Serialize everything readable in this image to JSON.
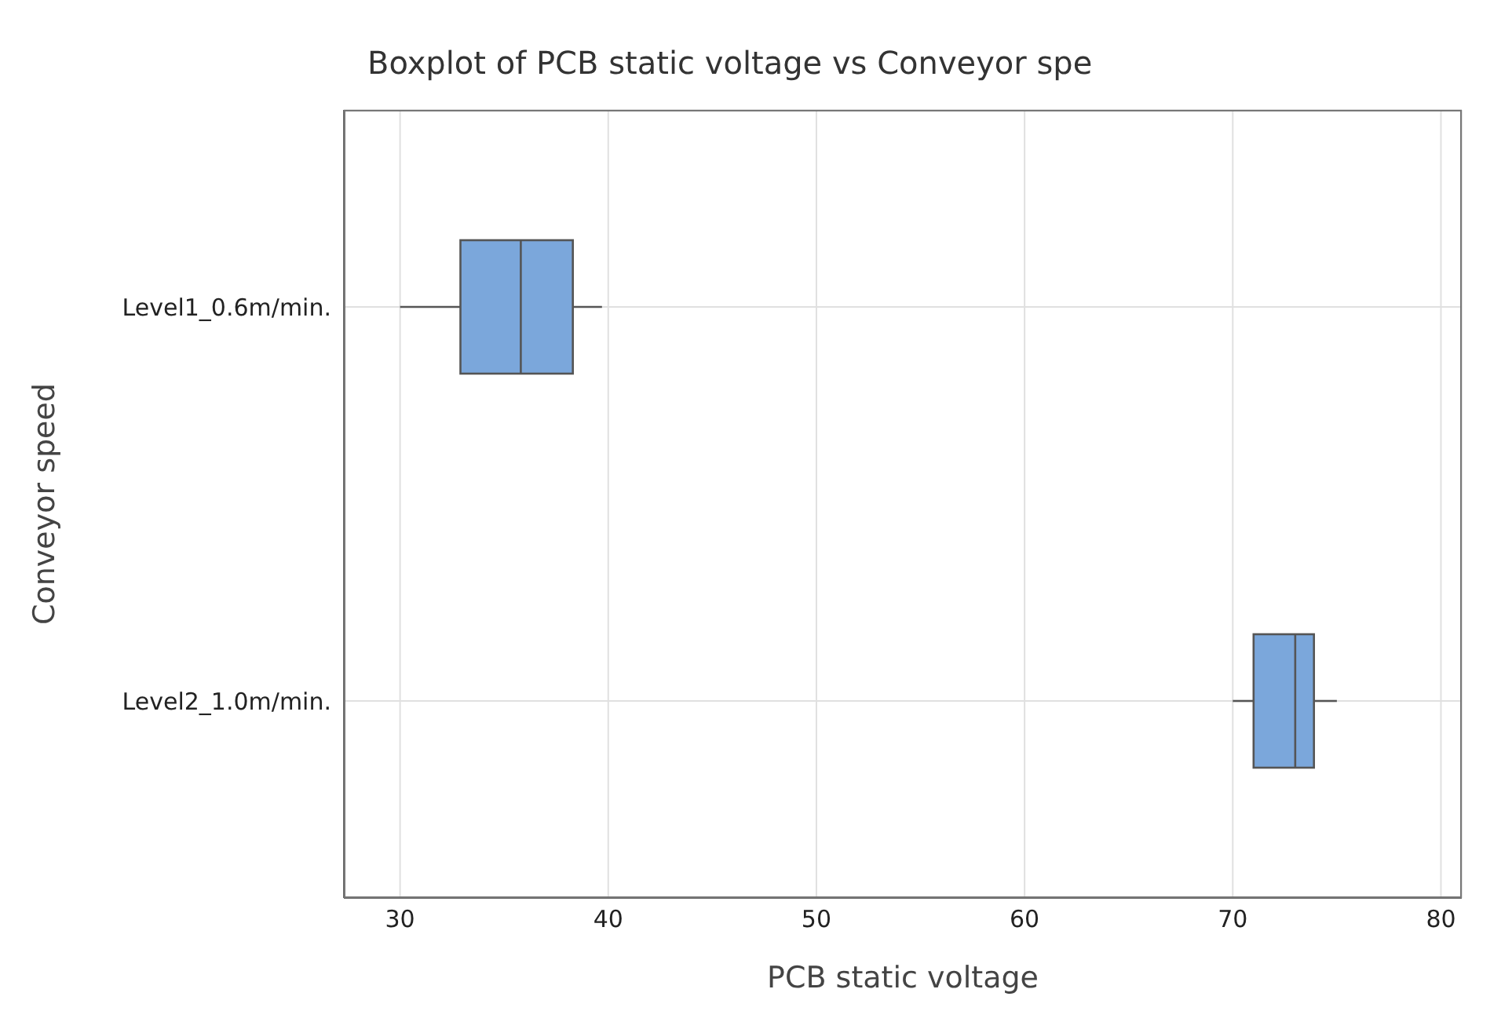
{
  "chart_data": {
    "type": "box",
    "orientation": "horizontal",
    "title": "Boxplot of PCB static voltage vs Conveyor spe",
    "xlabel": "PCB static voltage",
    "ylabel": "Conveyor speed",
    "categories": [
      "Level1_0.6m/min.",
      "Level2_1.0m/min."
    ],
    "color": "#7ba7db",
    "boxes": [
      {
        "low": 30,
        "q1": 32.9,
        "median": 35.8,
        "q3": 38.3,
        "high": 39.7
      },
      {
        "low": 70,
        "q1": 71,
        "median": 73,
        "q3": 73.9,
        "high": 75
      }
    ],
    "xlim": [
      27.3,
      81
    ],
    "xticks": [
      30,
      40,
      50,
      60,
      70,
      80
    ],
    "grid": true
  }
}
